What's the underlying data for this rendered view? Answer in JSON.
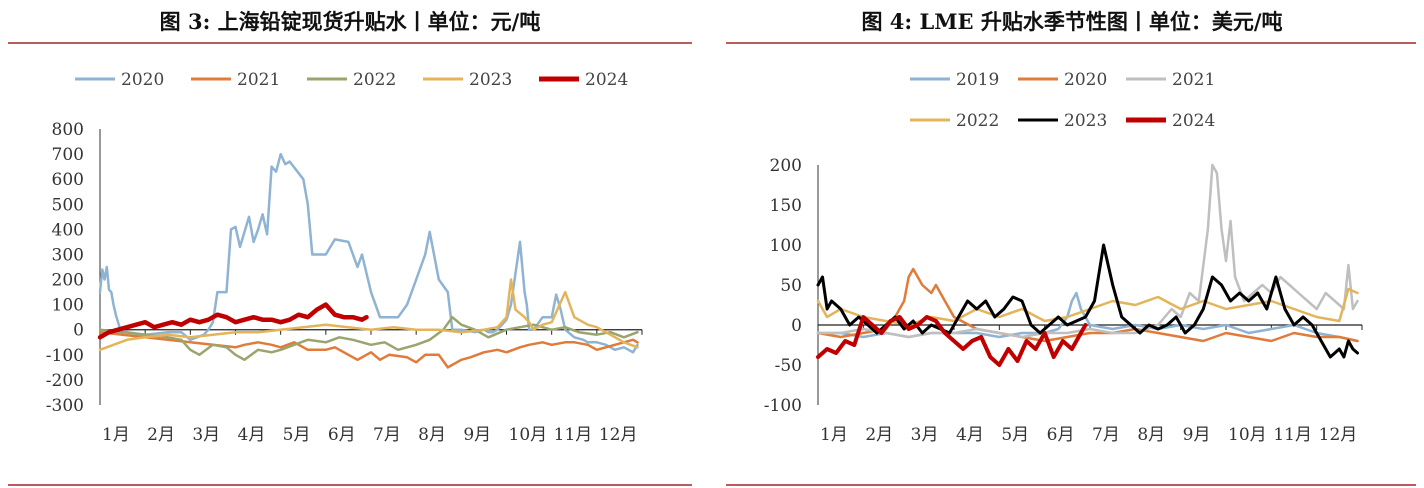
{
  "chart_data": [
    {
      "type": "line",
      "title": "图  3: 上海铅锭现货升贴水丨单位：元/吨",
      "xlabel": "",
      "ylabel": "",
      "categories": [
        "1月",
        "2月",
        "3月",
        "4月",
        "5月",
        "6月",
        "7月",
        "8月",
        "9月",
        "10月",
        "11月",
        "12月"
      ],
      "yticks": [
        "800",
        "700",
        "600",
        "500",
        "400",
        "300",
        "200",
        "100",
        "0",
        "-100",
        "-200",
        "-300"
      ],
      "ylim": [
        -300,
        800
      ],
      "legend": "top",
      "series": [
        {
          "name": "2020",
          "color": "#8fb3d3",
          "width": 2.5,
          "x": [
            0,
            0.05,
            0.1,
            0.15,
            0.2,
            0.25,
            0.3,
            0.35,
            0.45,
            0.6,
            1,
            1.5,
            1.8,
            2,
            2.3,
            2.4,
            2.5,
            2.6,
            2.8,
            2.9,
            3,
            3.1,
            3.3,
            3.4,
            3.5,
            3.6,
            3.7,
            3.8,
            3.9,
            4,
            4.1,
            4.2,
            4.5,
            4.6,
            4.7,
            4.8,
            5,
            5.2,
            5.5,
            5.7,
            5.8,
            6,
            6.2,
            6.4,
            6.5,
            6.6,
            6.8,
            7,
            7.2,
            7.3,
            7.5,
            7.7,
            7.8,
            8,
            8.3,
            8.5,
            8.6,
            8.7,
            8.8,
            8.9,
            9,
            9.1,
            9.3,
            9.4,
            9.45,
            9.5,
            9.6,
            9.8,
            10,
            10.1,
            10.2,
            10.3,
            10.5,
            10.7,
            10.8,
            11,
            11.2,
            11.4,
            11.6,
            11.8,
            11.9
          ],
          "values": [
            150,
            240,
            200,
            250,
            160,
            150,
            100,
            60,
            0,
            -10,
            -20,
            -10,
            -10,
            -40,
            -20,
            0,
            30,
            150,
            150,
            400,
            410,
            330,
            450,
            350,
            400,
            460,
            380,
            650,
            630,
            700,
            660,
            670,
            600,
            500,
            300,
            300,
            300,
            360,
            350,
            250,
            300,
            150,
            50,
            50,
            50,
            50,
            100,
            200,
            300,
            390,
            200,
            150,
            0,
            0,
            -10,
            0,
            -10,
            -10,
            0,
            20,
            40,
            100,
            350,
            150,
            100,
            0,
            0,
            50,
            50,
            140,
            80,
            0,
            -30,
            -40,
            -50,
            -50,
            -60,
            -80,
            -70,
            -90,
            -60
          ]
        },
        {
          "name": "2021",
          "color": "#e07b39",
          "width": 2.5,
          "x": [
            0,
            0.5,
            1,
            1.5,
            2,
            2.5,
            3,
            3.2,
            3.5,
            3.8,
            4,
            4.3,
            4.6,
            5,
            5.2,
            5.5,
            5.7,
            6,
            6.2,
            6.4,
            6.8,
            7,
            7.2,
            7.5,
            7.7,
            8,
            8.2,
            8.5,
            8.8,
            9,
            9.3,
            9.5,
            9.8,
            10,
            10.3,
            10.5,
            10.8,
            11,
            11.2,
            11.4,
            11.6,
            11.8,
            11.9
          ],
          "values": [
            -10,
            -20,
            -30,
            -40,
            -50,
            -60,
            -70,
            -60,
            -50,
            -60,
            -70,
            -50,
            -80,
            -80,
            -70,
            -100,
            -120,
            -90,
            -120,
            -100,
            -110,
            -130,
            -100,
            -100,
            -150,
            -120,
            -110,
            -90,
            -80,
            -90,
            -70,
            -60,
            -50,
            -60,
            -50,
            -50,
            -60,
            -80,
            -70,
            -60,
            -50,
            -40,
            -50
          ]
        },
        {
          "name": "2022",
          "color": "#9aa56e",
          "width": 2.5,
          "x": [
            0,
            0.5,
            1,
            1.5,
            1.8,
            2,
            2.2,
            2.5,
            2.8,
            3,
            3.2,
            3.5,
            3.8,
            4,
            4.3,
            4.6,
            5,
            5.3,
            5.6,
            6,
            6.3,
            6.6,
            7,
            7.3,
            7.6,
            7.8,
            8,
            8.3,
            8.6,
            9,
            9.3,
            9.6,
            10,
            10.3,
            10.6,
            11,
            11.3,
            11.6,
            11.9
          ],
          "values": [
            0,
            -10,
            -20,
            -30,
            -40,
            -80,
            -100,
            -60,
            -70,
            -100,
            -120,
            -80,
            -90,
            -80,
            -60,
            -40,
            -50,
            -30,
            -40,
            -60,
            -50,
            -80,
            -60,
            -40,
            0,
            50,
            20,
            0,
            -30,
            0,
            10,
            20,
            0,
            10,
            -10,
            -20,
            -10,
            -30,
            -10
          ]
        },
        {
          "name": "2023",
          "color": "#e3b45a",
          "width": 2.5,
          "x": [
            0,
            0.3,
            0.6,
            1,
            1.5,
            2,
            2.5,
            3,
            3.5,
            4,
            4.5,
            5,
            5.5,
            6,
            6.5,
            7,
            7.5,
            8,
            8.5,
            8.8,
            9,
            9.1,
            9.2,
            9.4,
            9.5,
            9.6,
            9.8,
            10,
            10.3,
            10.5,
            10.8,
            11,
            11.3,
            11.6,
            11.9
          ],
          "values": [
            -80,
            -60,
            -40,
            -30,
            -20,
            -30,
            -20,
            -10,
            -10,
            0,
            10,
            20,
            10,
            0,
            10,
            0,
            0,
            -10,
            0,
            10,
            50,
            200,
            80,
            50,
            30,
            0,
            20,
            30,
            150,
            50,
            20,
            10,
            -20,
            -50,
            -70
          ]
        },
        {
          "name": "2024",
          "color": "#c00000",
          "width": 4.5,
          "x": [
            0,
            0.2,
            0.4,
            0.6,
            0.8,
            1,
            1.2,
            1.4,
            1.6,
            1.8,
            2,
            2.2,
            2.4,
            2.5,
            2.6,
            2.8,
            3,
            3.2,
            3.4,
            3.6,
            3.8,
            4,
            4.2,
            4.4,
            4.6,
            4.8,
            5,
            5.2,
            5.4,
            5.6,
            5.8,
            5.9
          ],
          "values": [
            -30,
            -10,
            0,
            10,
            20,
            30,
            10,
            20,
            30,
            20,
            40,
            30,
            40,
            50,
            60,
            50,
            30,
            40,
            50,
            40,
            40,
            30,
            40,
            60,
            50,
            80,
            100,
            60,
            50,
            50,
            40,
            50
          ]
        }
      ]
    },
    {
      "type": "line",
      "title": "图  4: LME 升贴水季节性图丨单位：美元/吨",
      "xlabel": "",
      "ylabel": "",
      "categories": [
        "1月",
        "2月",
        "3月",
        "4月",
        "5月",
        "6月",
        "7月",
        "8月",
        "9月",
        "10月",
        "11月",
        "12月"
      ],
      "yticks": [
        "200",
        "150",
        "100",
        "50",
        "0",
        "-50",
        "-100"
      ],
      "ylim": [
        -100,
        200
      ],
      "legend": "top",
      "series": [
        {
          "name": "2019",
          "color": "#8fb3d3",
          "width": 2.5,
          "x": [
            0,
            0.5,
            1,
            1.5,
            2,
            2.5,
            3,
            3.5,
            4,
            4.5,
            5,
            5.3,
            5.5,
            5.6,
            5.7,
            5.8,
            6,
            6.5,
            7,
            7.5,
            8,
            8.5,
            9,
            9.5,
            10,
            10.5,
            11,
            11.5,
            11.9
          ],
          "values": [
            -10,
            -10,
            -15,
            -10,
            -15,
            -10,
            -10,
            -10,
            -15,
            -10,
            -10,
            -5,
            10,
            30,
            40,
            20,
            0,
            -5,
            0,
            -5,
            0,
            -5,
            0,
            -10,
            -5,
            0,
            -10,
            -15,
            -20
          ]
        },
        {
          "name": "2020",
          "color": "#e07b39",
          "width": 2.5,
          "x": [
            0,
            0.5,
            1,
            1.5,
            1.7,
            1.9,
            2,
            2.1,
            2.3,
            2.5,
            2.6,
            2.8,
            3,
            3.5,
            4,
            4.5,
            5,
            5.5,
            6,
            6.5,
            7,
            7.5,
            8,
            8.5,
            9,
            9.5,
            10,
            10.5,
            11,
            11.5,
            11.9
          ],
          "values": [
            -10,
            -15,
            -10,
            -5,
            10,
            30,
            60,
            70,
            50,
            40,
            50,
            30,
            10,
            -5,
            -10,
            -15,
            -20,
            -15,
            -10,
            -10,
            -5,
            -10,
            -15,
            -20,
            -10,
            -15,
            -20,
            -10,
            -15,
            -15,
            -20
          ]
        },
        {
          "name": "2021",
          "color": "#bfbfbf",
          "width": 2.5,
          "x": [
            0,
            0.5,
            1,
            1.5,
            2,
            2.5,
            3,
            3.5,
            4,
            4.5,
            5,
            5.5,
            6,
            6.5,
            7,
            7.5,
            7.8,
            8,
            8.2,
            8.4,
            8.6,
            8.7,
            8.8,
            8.9,
            9,
            9.1,
            9.2,
            9.4,
            9.6,
            9.8,
            10,
            10.2,
            10.4,
            10.6,
            10.8,
            11,
            11.2,
            11.4,
            11.6,
            11.7,
            11.8,
            11.9
          ],
          "values": [
            -10,
            -10,
            -5,
            -10,
            -15,
            -10,
            -10,
            -5,
            -10,
            -15,
            -10,
            -10,
            -5,
            -10,
            -10,
            0,
            20,
            10,
            40,
            30,
            120,
            200,
            190,
            120,
            80,
            130,
            60,
            30,
            40,
            50,
            40,
            60,
            50,
            40,
            30,
            20,
            40,
            30,
            20,
            75,
            20,
            30
          ]
        },
        {
          "name": "2022",
          "color": "#e3b45a",
          "width": 2.5,
          "x": [
            0,
            0.2,
            0.5,
            1,
            1.5,
            2,
            2.5,
            3,
            3.5,
            4,
            4.5,
            5,
            5.5,
            6,
            6.5,
            7,
            7.5,
            8,
            8.5,
            9,
            9.5,
            10,
            10.5,
            11,
            11.5,
            11.7,
            11.9
          ],
          "values": [
            30,
            10,
            20,
            10,
            5,
            0,
            10,
            5,
            20,
            10,
            20,
            5,
            10,
            20,
            30,
            25,
            35,
            20,
            30,
            20,
            25,
            30,
            20,
            10,
            5,
            45,
            40
          ]
        },
        {
          "name": "2023",
          "color": "#000000",
          "width": 3,
          "x": [
            0,
            0.1,
            0.2,
            0.3,
            0.5,
            0.7,
            0.9,
            1.1,
            1.3,
            1.5,
            1.7,
            1.9,
            2.1,
            2.3,
            2.5,
            2.7,
            2.9,
            3.1,
            3.3,
            3.5,
            3.7,
            3.9,
            4.1,
            4.3,
            4.5,
            4.7,
            4.9,
            5.1,
            5.3,
            5.5,
            5.7,
            5.9,
            6.1,
            6.3,
            6.5,
            6.7,
            6.9,
            7.1,
            7.3,
            7.5,
            7.7,
            7.9,
            8.1,
            8.3,
            8.5,
            8.7,
            8.9,
            9.1,
            9.3,
            9.5,
            9.7,
            9.9,
            10.1,
            10.3,
            10.5,
            10.7,
            10.9,
            11.1,
            11.3,
            11.5,
            11.6,
            11.7,
            11.8,
            11.9
          ],
          "values": [
            50,
            60,
            20,
            30,
            20,
            0,
            10,
            0,
            -10,
            0,
            10,
            -5,
            5,
            -10,
            0,
            -5,
            -10,
            10,
            30,
            20,
            30,
            10,
            20,
            35,
            30,
            0,
            -10,
            0,
            10,
            0,
            5,
            10,
            30,
            100,
            50,
            10,
            0,
            -10,
            0,
            -5,
            0,
            10,
            -10,
            0,
            20,
            60,
            50,
            30,
            40,
            30,
            40,
            20,
            60,
            20,
            0,
            10,
            0,
            -20,
            -40,
            -30,
            -40,
            -20,
            -30,
            -35
          ]
        },
        {
          "name": "2024",
          "color": "#c00000",
          "width": 4,
          "x": [
            0,
            0.2,
            0.4,
            0.6,
            0.8,
            1,
            1.2,
            1.4,
            1.6,
            1.8,
            2,
            2.2,
            2.4,
            2.6,
            2.8,
            3,
            3.2,
            3.4,
            3.6,
            3.8,
            4,
            4.2,
            4.4,
            4.6,
            4.8,
            5,
            5.2,
            5.4,
            5.6,
            5.8,
            5.9
          ],
          "values": [
            -40,
            -30,
            -35,
            -20,
            -25,
            10,
            0,
            -10,
            5,
            10,
            -5,
            0,
            10,
            5,
            -10,
            -20,
            -30,
            -20,
            -15,
            -40,
            -50,
            -30,
            -45,
            -20,
            -30,
            -10,
            -40,
            -20,
            -30,
            -10,
            0
          ]
        }
      ]
    }
  ]
}
